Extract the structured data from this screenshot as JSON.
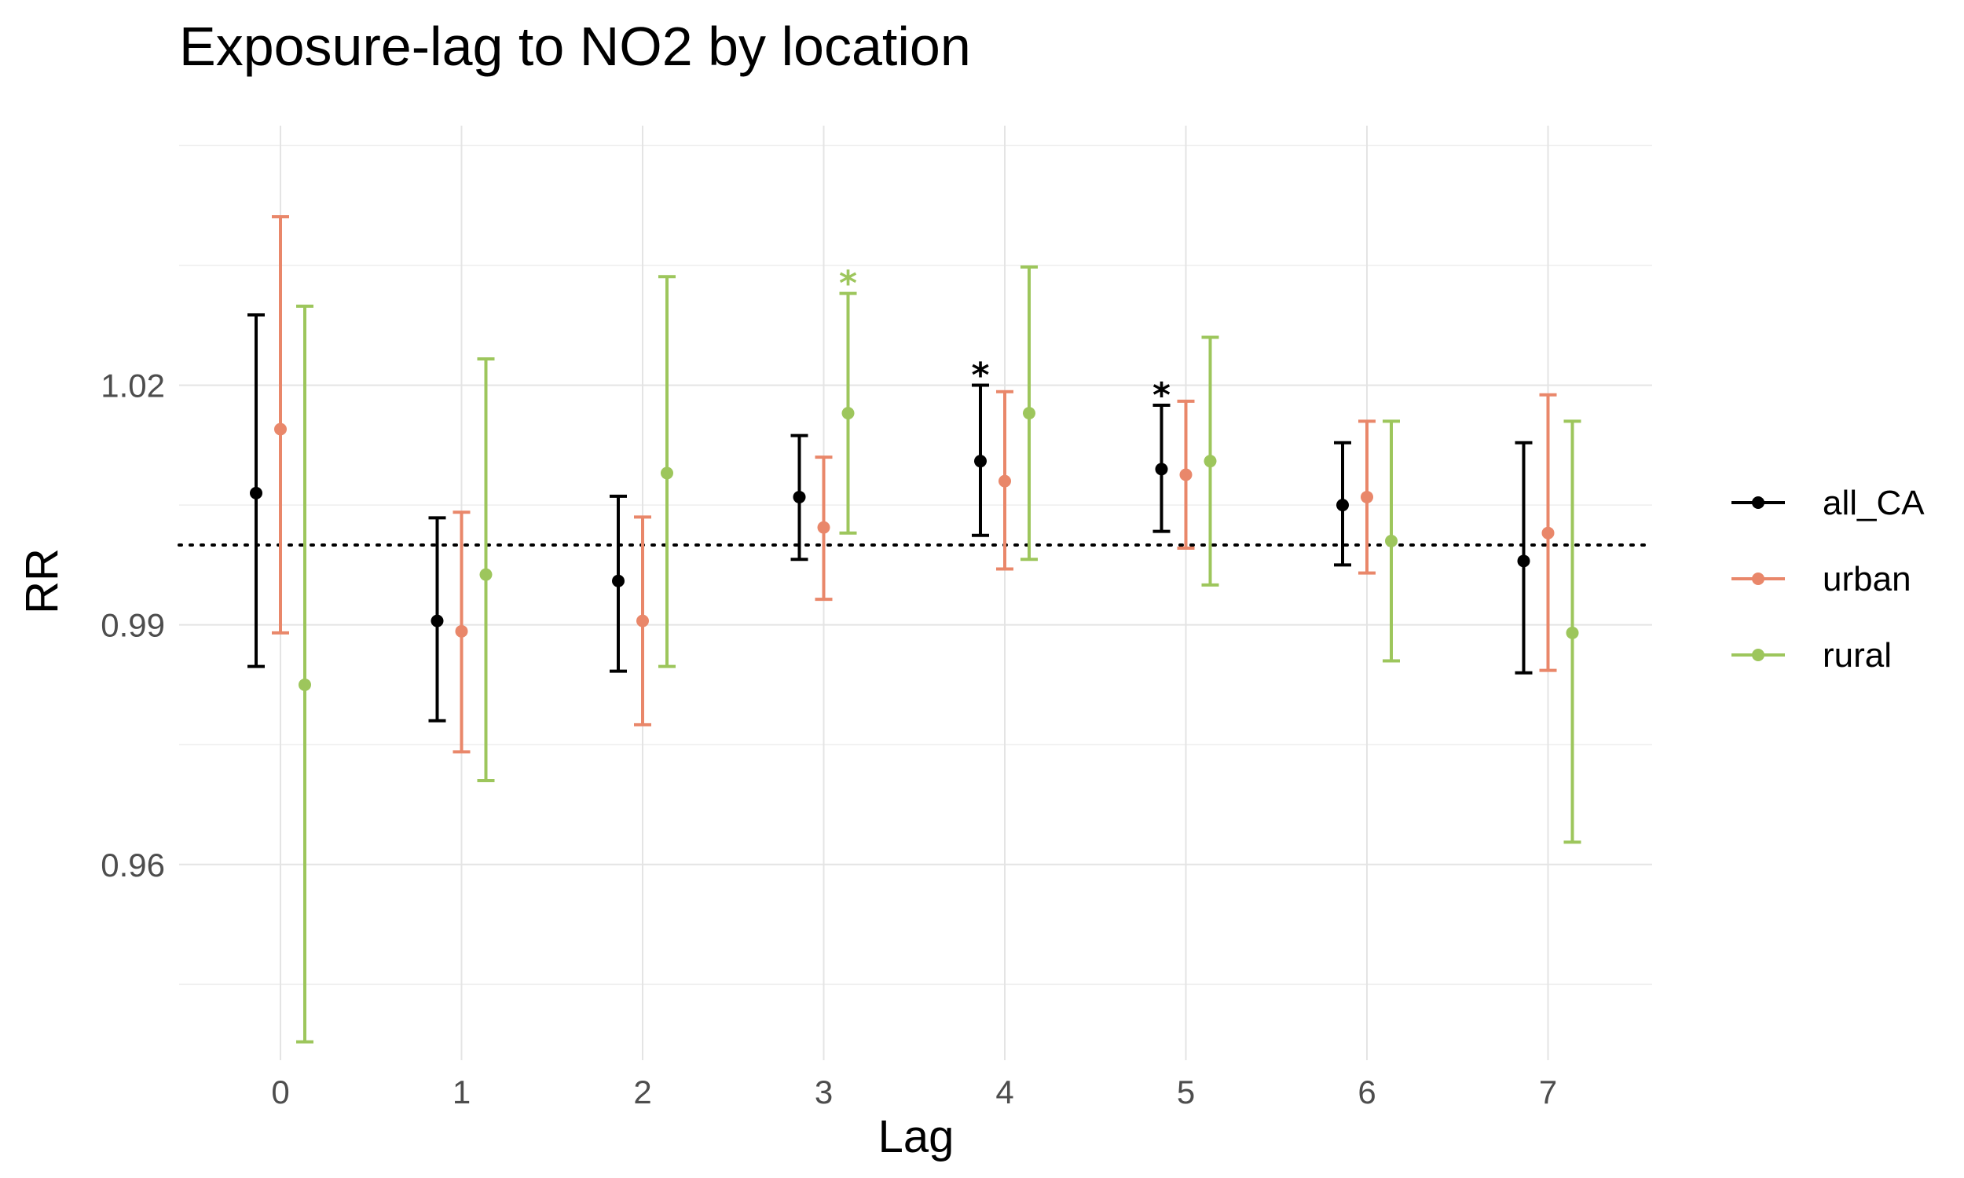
{
  "chart_data": {
    "type": "errorbar",
    "title": "Exposure-lag to NO2 by location",
    "xlabel": "Lag",
    "ylabel": "RR",
    "categories": [
      "0",
      "1",
      "2",
      "3",
      "4",
      "5",
      "6",
      "7"
    ],
    "y_ticks": [
      0.96,
      0.99,
      1.02
    ],
    "y_tick_labels": [
      "0.96",
      "0.99",
      "1.02"
    ],
    "ylim": [
      0.9355,
      1.0525
    ],
    "reference_line": 1.0,
    "legend_position": "right",
    "grid": true,
    "series": [
      {
        "name": "all_CA",
        "color": "#000000",
        "estimate": [
          1.0065,
          0.9905,
          0.9955,
          1.006,
          1.0105,
          1.0095,
          1.005,
          0.998
        ],
        "lower": [
          0.9848,
          0.978,
          0.9842,
          0.9982,
          1.0012,
          1.0017,
          0.9975,
          0.984
        ],
        "upper": [
          1.0288,
          1.0034,
          1.0061,
          1.0137,
          1.02,
          1.0175,
          1.0128,
          1.0128
        ],
        "significance": [
          "",
          "",
          "",
          "",
          "*",
          "*",
          "",
          ""
        ]
      },
      {
        "name": "urban",
        "color": "#E9876A",
        "estimate": [
          1.0145,
          0.9892,
          0.9905,
          1.0022,
          1.008,
          1.0088,
          1.006,
          1.0015
        ],
        "lower": [
          0.989,
          0.9741,
          0.9775,
          0.9932,
          0.997,
          0.9996,
          0.9965,
          0.9843
        ],
        "upper": [
          1.0411,
          1.0041,
          1.0035,
          1.011,
          1.0192,
          1.018,
          1.0155,
          1.0188
        ],
        "significance": [
          "",
          "",
          "",
          "",
          "",
          "",
          "",
          ""
        ]
      },
      {
        "name": "rural",
        "color": "#9DC65C",
        "estimate": [
          0.9825,
          0.9963,
          1.009,
          1.0165,
          1.0165,
          1.0105,
          1.0005,
          0.989
        ],
        "lower": [
          0.9378,
          0.9705,
          0.9848,
          1.0015,
          0.9982,
          0.995,
          0.9855,
          0.9628
        ],
        "upper": [
          1.0299,
          1.0233,
          1.0336,
          1.0315,
          1.0348,
          1.026,
          1.0155,
          1.0155
        ],
        "significance": [
          "",
          "",
          "",
          "*",
          "",
          "",
          "",
          ""
        ]
      }
    ]
  }
}
